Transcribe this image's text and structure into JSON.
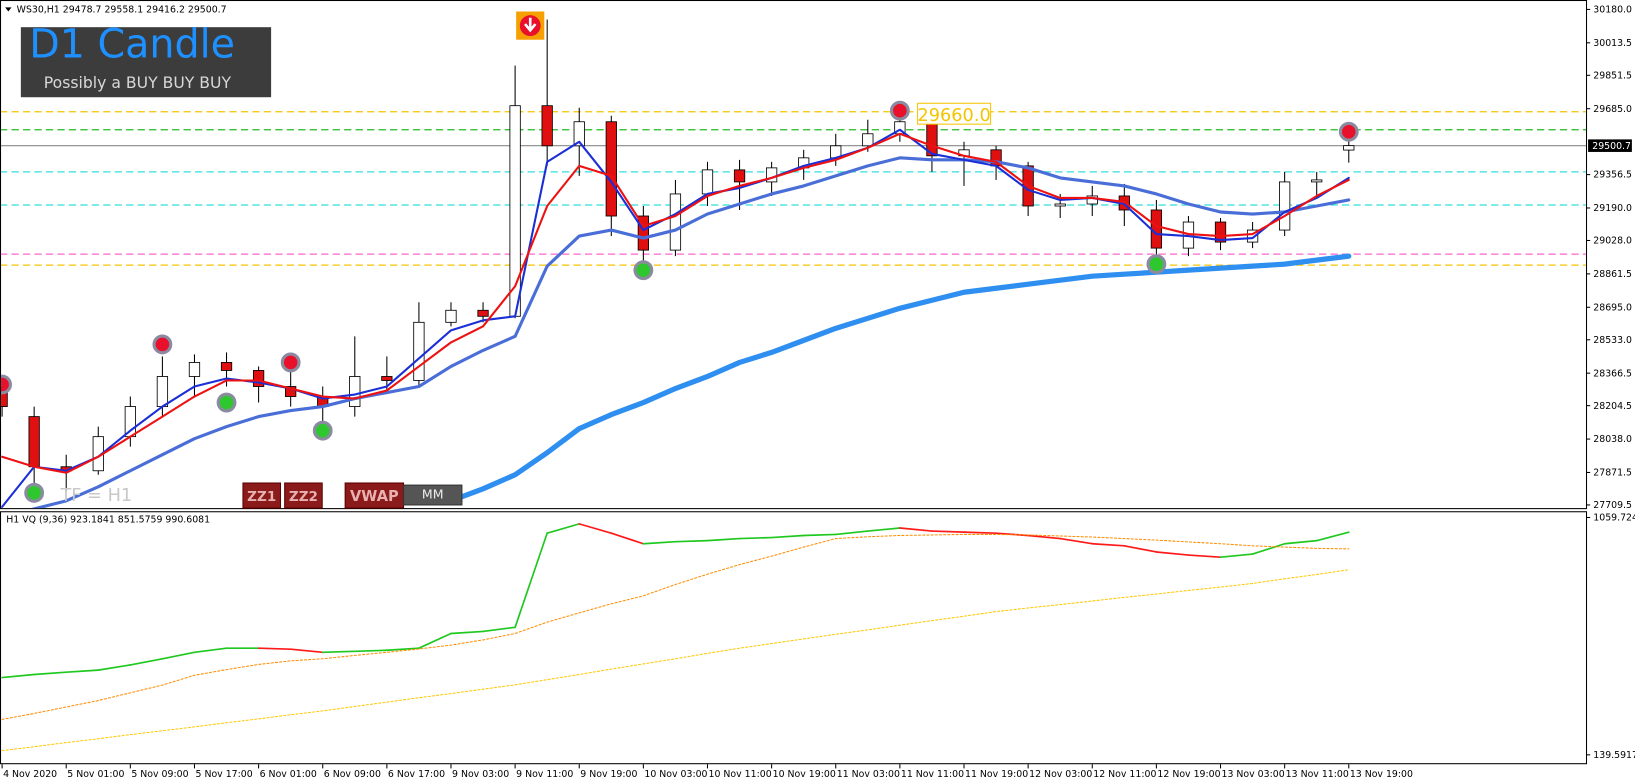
{
  "chart_data": [
    {
      "type": "candlestick",
      "title": "WS30,H1",
      "ohlc": [
        29478.7,
        29558.1,
        29416.2,
        29500.7
      ],
      "categories": [
        "4 Nov 2020",
        null,
        "5 Nov 01:00",
        null,
        "5 Nov 09:00",
        null,
        "5 Nov 17:00",
        null,
        "6 Nov 01:00",
        null,
        "6 Nov 09:00",
        null,
        "6 Nov 17:00",
        null,
        "9 Nov 03:00",
        null,
        "9 Nov 11:00",
        null,
        "9 Nov 19:00",
        null,
        "10 Nov 03:00",
        null,
        "10 Nov 11:00",
        null,
        "10 Nov 19:00",
        null,
        "11 Nov 03:00",
        null,
        "11 Nov 11:00",
        null,
        "11 Nov 19:00",
        null,
        "12 Nov 03:00",
        null,
        "12 Nov 11:00",
        null,
        "12 Nov 19:00",
        null,
        "13 Nov 03:00",
        null,
        "13 Nov 11:00",
        null,
        "13 Nov 19:00"
      ],
      "open": [
        28300,
        28150,
        27900,
        27880,
        28050,
        28200,
        28350,
        28420,
        28380,
        28300,
        28250,
        28200,
        28350,
        28330,
        28620,
        28680,
        28650,
        29700,
        29500,
        29620,
        29150,
        28980,
        29260,
        29380,
        29320,
        29390,
        29440,
        29500,
        29560,
        29620,
        29450,
        29480,
        29400,
        29200,
        29210,
        29250,
        29180,
        28990,
        29120,
        29020,
        29080,
        29320,
        29478.7
      ],
      "high": [
        28340,
        28200,
        27960,
        28100,
        28250,
        28450,
        28460,
        28470,
        28400,
        28420,
        28300,
        28550,
        28450,
        28720,
        28720,
        28720,
        29900,
        30130,
        29690,
        29650,
        29200,
        29330,
        29420,
        29430,
        29420,
        29480,
        29560,
        29630,
        29680,
        29650,
        29520,
        29500,
        29420,
        29260,
        29300,
        29310,
        29230,
        29150,
        29140,
        29120,
        29370,
        29370,
        29558.1
      ],
      "low": [
        28150,
        27750,
        27780,
        27860,
        28000,
        28150,
        28250,
        28300,
        28220,
        28200,
        28080,
        28150,
        28280,
        28300,
        28600,
        28620,
        28640,
        29400,
        29350,
        29050,
        28880,
        28950,
        29200,
        29180,
        29250,
        29330,
        29400,
        29470,
        29520,
        29370,
        29300,
        29330,
        29150,
        29140,
        29150,
        29100,
        28880,
        28950,
        28980,
        28990,
        29050,
        29250,
        29416.2
      ],
      "close": [
        28200,
        27900,
        27880,
        28050,
        28200,
        28350,
        28420,
        28380,
        28300,
        28250,
        28200,
        28350,
        28330,
        28620,
        28680,
        28650,
        29700,
        29500,
        29620,
        29150,
        28980,
        29260,
        29380,
        29320,
        29390,
        29440,
        29500,
        29560,
        29620,
        29450,
        29480,
        29400,
        29200,
        29210,
        29250,
        29180,
        28990,
        29120,
        29020,
        29080,
        29320,
        29330,
        29500.7
      ],
      "up_color": "#ffffff",
      "down_color": "#e01010",
      "series": [
        {
          "color": "#2f8ff0",
          "width": 5,
          "values": [
            null,
            null,
            null,
            null,
            null,
            null,
            null,
            null,
            null,
            null,
            null,
            null,
            null,
            null,
            27730,
            27790,
            27860,
            27970,
            28090,
            28160,
            28220,
            28290,
            28350,
            28420,
            28470,
            28530,
            28590,
            28640,
            28690,
            28730,
            28770,
            28790,
            28810,
            28830,
            28850,
            28860,
            28870,
            28880,
            28890,
            28900,
            28910,
            28930,
            28950
          ]
        },
        {
          "color": "#4a6ed8",
          "width": 3,
          "values": [
            27650,
            27690,
            27730,
            27800,
            27880,
            27960,
            28040,
            28100,
            28150,
            28180,
            28200,
            28240,
            28270,
            28300,
            28400,
            28480,
            28550,
            28900,
            29050,
            29080,
            29040,
            29080,
            29160,
            29210,
            29260,
            29300,
            29350,
            29400,
            29440,
            29430,
            29430,
            29420,
            29390,
            29340,
            29320,
            29300,
            29260,
            29210,
            29170,
            29160,
            29170,
            29200,
            29230
          ]
        },
        {
          "color": "#1a2fd6",
          "width": 2,
          "values": [
            27700,
            27900,
            27880,
            27950,
            28080,
            28200,
            28300,
            28340,
            28320,
            28290,
            28240,
            28260,
            28300,
            28440,
            28580,
            28630,
            28650,
            29420,
            29520,
            29320,
            29080,
            29160,
            29260,
            29290,
            29340,
            29400,
            29440,
            29490,
            29580,
            29460,
            29430,
            29400,
            29280,
            29230,
            29240,
            29210,
            29060,
            29050,
            29030,
            29040,
            29170,
            29240,
            29340
          ]
        },
        {
          "color": "#ee1111",
          "width": 2,
          "values": [
            27950,
            27900,
            27870,
            27950,
            28050,
            28150,
            28250,
            28330,
            28330,
            28290,
            28250,
            28240,
            28280,
            28400,
            28520,
            28600,
            28800,
            29200,
            29400,
            29350,
            29100,
            29150,
            29250,
            29300,
            29340,
            29390,
            29430,
            29490,
            29560,
            29500,
            29450,
            29420,
            29300,
            29240,
            29240,
            29220,
            29100,
            29060,
            29050,
            29060,
            29150,
            29250,
            29330
          ]
        }
      ],
      "signals": [
        {
          "color": "#e8102a",
          "values": [
            28310,
            null,
            null,
            null,
            null,
            28510,
            null,
            null,
            null,
            28420,
            null,
            null,
            null,
            null,
            null,
            null,
            null,
            null,
            null,
            null,
            null,
            null,
            null,
            null,
            null,
            null,
            null,
            null,
            29675,
            null,
            null,
            null,
            null,
            null,
            null,
            null,
            null,
            null,
            null,
            null,
            null,
            null,
            29570
          ]
        },
        {
          "color": "#2ec82e",
          "values": [
            null,
            27770,
            null,
            null,
            null,
            null,
            null,
            28220,
            null,
            null,
            28080,
            null,
            null,
            null,
            null,
            null,
            null,
            null,
            null,
            null,
            28880,
            null,
            null,
            null,
            null,
            null,
            null,
            null,
            null,
            null,
            null,
            null,
            null,
            null,
            null,
            null,
            28910,
            null,
            null,
            null,
            null,
            null,
            null
          ]
        }
      ],
      "levels": [
        {
          "value": 29670,
          "color": "#f5c400"
        },
        {
          "value": 29580,
          "color": "#22bb22"
        },
        {
          "value": 29370,
          "color": "#33dddd"
        },
        {
          "value": 29205,
          "color": "#33dddd"
        },
        {
          "value": 28960,
          "color": "#ff66cc"
        },
        {
          "value": 28905,
          "color": "#f5c400"
        }
      ],
      "current_price": 29500.7,
      "price_label": {
        "value": 29660,
        "label": "29660.0"
      },
      "ylim": [
        27709.5,
        30180
      ],
      "yticks": [
        {
          "value": 30180,
          "label": "30180.0"
        },
        {
          "value": 30013.5,
          "label": "30013.5"
        },
        {
          "value": 29851.5,
          "label": "29851.5"
        },
        {
          "value": 29685,
          "label": "29685.0"
        },
        {
          "value": 29356.5,
          "label": "29356.5"
        },
        {
          "value": 29190,
          "label": "29190.0"
        },
        {
          "value": 29028,
          "label": "29028.0"
        },
        {
          "value": 28861.5,
          "label": "28861.5"
        },
        {
          "value": 28695,
          "label": "28695.0"
        },
        {
          "value": 28533,
          "label": "28533.0"
        },
        {
          "value": 28366.5,
          "label": "28366.5"
        },
        {
          "value": 28204.5,
          "label": "28204.5"
        },
        {
          "value": 28038,
          "label": "28038.0"
        },
        {
          "value": 27871.5,
          "label": "27871.5"
        },
        {
          "value": 27709.5,
          "label": "27709.5"
        }
      ]
    },
    {
      "type": "line",
      "title": "H1 VQ (9,36)",
      "indicator_values": [
        923.1841,
        851.5759,
        990.6081
      ],
      "series": [
        {
          "color_up": "#1fc81f",
          "color_down": "#ff1a1a",
          "values": [
            439,
            451,
            460,
            468,
            488,
            512,
            537,
            553,
            553,
            549,
            537,
            541,
            545,
            553,
            610,
            618,
            634,
            999,
            1035,
            999,
            958,
            966,
            970,
            978,
            982,
            990,
            994,
            1007,
            1019,
            1007,
            1003,
            999,
            990,
            978,
            958,
            950,
            926,
            914,
            906,
            918,
            958,
            970,
            1003
          ]
        },
        {
          "color": "#ff8c00",
          "dashed": true,
          "values": [
            277,
            300,
            325,
            350,
            380,
            410,
            448,
            470,
            490,
            504,
            512,
            525,
            537,
            550,
            565,
            585,
            610,
            654,
            690,
            725,
            756,
            800,
            840,
            877,
            910,
            945,
            978,
            985,
            990,
            992,
            994,
            994,
            992,
            988,
            984,
            978,
            972,
            965,
            958,
            950,
            945,
            940,
            938
          ]
        },
        {
          "color": "#ffc800",
          "dashed": true,
          "values": [
            156,
            171,
            187,
            202,
            218,
            233,
            248,
            264,
            279,
            295,
            310,
            327,
            344,
            361,
            377,
            394,
            411,
            431,
            451,
            472,
            492,
            512,
            533,
            553,
            571,
            589,
            607,
            624,
            642,
            660,
            677,
            695,
            709,
            722,
            736,
            750,
            763,
            777,
            790,
            804,
            822,
            839,
            857
          ]
        }
      ],
      "ylim": [
        139.5917,
        1059.7244
      ],
      "yticks": [
        139.5917,
        1059.7244
      ]
    }
  ],
  "ui": {
    "banner_title": "D1 Candle",
    "banner_text": "Possibly a BUY BUY BUY",
    "timeframe": "TF = H1",
    "buttons": [
      "ZZ1",
      "ZZ2",
      "VWAP",
      "MM"
    ]
  }
}
